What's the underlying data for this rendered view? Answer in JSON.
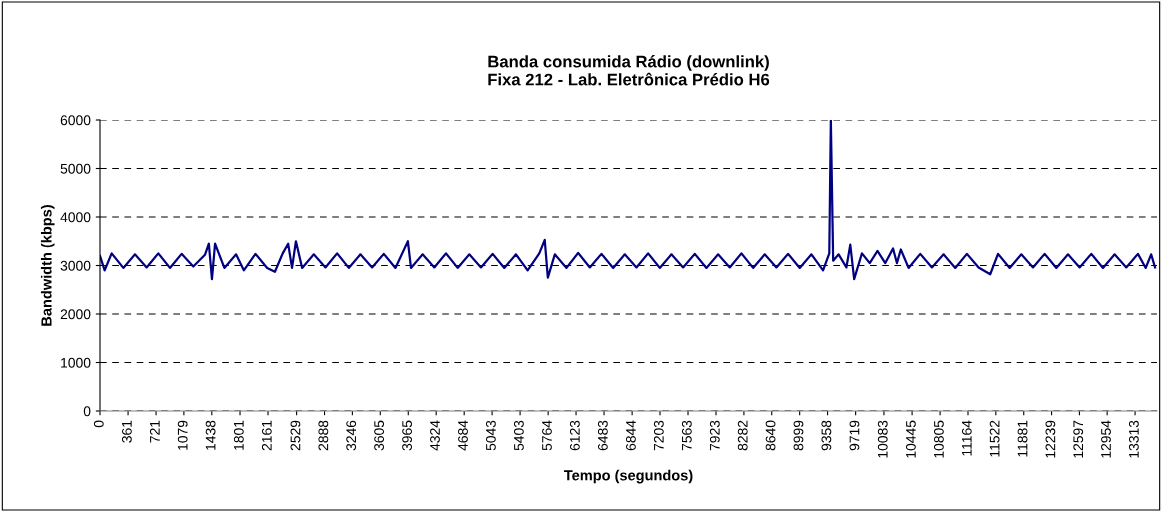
{
  "chart_data": {
    "type": "line",
    "title": "Banda consumida Rádio (downlink)\nFixa 212 - Lab. Eletrônica Prédio H6",
    "xlabel": "Tempo (segundos)",
    "ylabel": "Bandwidth (kbps)",
    "series": [
      {
        "color": "#000080",
        "x": [
          0,
          60,
          150,
          300,
          450,
          600,
          750,
          900,
          1050,
          1200,
          1350,
          1400,
          1440,
          1480,
          1600,
          1750,
          1850,
          2000,
          2150,
          2250,
          2350,
          2420,
          2470,
          2520,
          2600,
          2750,
          2900,
          3050,
          3200,
          3350,
          3500,
          3650,
          3800,
          3960,
          4000,
          4150,
          4300,
          4450,
          4600,
          4750,
          4900,
          5050,
          5200,
          5350,
          5500,
          5650,
          5720,
          5760,
          5850,
          6000,
          6150,
          6300,
          6450,
          6600,
          6750,
          6900,
          7050,
          7200,
          7350,
          7500,
          7650,
          7800,
          7950,
          8100,
          8250,
          8400,
          8550,
          8700,
          8850,
          9000,
          9150,
          9300,
          9380,
          9400,
          9430,
          9500,
          9600,
          9650,
          9700,
          9800,
          9900,
          10000,
          10100,
          10200,
          10250,
          10300,
          10400,
          10550,
          10700,
          10850,
          11000,
          11150,
          11300,
          11450,
          11550,
          11700,
          11850,
          12000,
          12150,
          12300,
          12450,
          12600,
          12750,
          12900,
          13050,
          13200,
          13350,
          13450,
          13520,
          13570
        ],
        "values": [
          3200,
          2900,
          3250,
          2950,
          3230,
          2960,
          3250,
          2950,
          3240,
          2980,
          3220,
          3450,
          2720,
          3450,
          2950,
          3230,
          2900,
          3240,
          2950,
          2870,
          3250,
          3450,
          2950,
          3500,
          2950,
          3230,
          2960,
          3250,
          2950,
          3230,
          2960,
          3240,
          2950,
          3500,
          2950,
          3230,
          2960,
          3250,
          2950,
          3230,
          2960,
          3240,
          2950,
          3230,
          2900,
          3250,
          3530,
          2750,
          3230,
          2950,
          3260,
          2960,
          3240,
          2950,
          3230,
          2960,
          3250,
          2950,
          3230,
          2960,
          3240,
          2950,
          3230,
          2960,
          3250,
          2950,
          3230,
          2960,
          3240,
          2950,
          3230,
          2900,
          3250,
          6000,
          3100,
          3230,
          2960,
          3430,
          2720,
          3250,
          3050,
          3300,
          3050,
          3350,
          3050,
          3330,
          2950,
          3240,
          2960,
          3230,
          2950,
          3240,
          2960,
          2820,
          3240,
          2950,
          3230,
          2960,
          3240,
          2950,
          3230,
          2960,
          3240,
          2950,
          3230,
          2960,
          3240,
          2950,
          3230,
          2960
        ]
      }
    ],
    "xlim": [
      0,
      13595
    ],
    "xticks": [
      0,
      361,
      721,
      1079,
      1438,
      1801,
      2161,
      2529,
      2888,
      3246,
      3605,
      3965,
      4324,
      4684,
      5043,
      5403,
      5764,
      6123,
      6483,
      6844,
      7203,
      7563,
      7923,
      8282,
      8640,
      8999,
      9358,
      9719,
      10083,
      10445,
      10805,
      11164,
      11522,
      11881,
      12239,
      12597,
      12954,
      13313
    ],
    "ylim": [
      0,
      6000
    ],
    "yticks": [
      0,
      1000,
      2000,
      3000,
      4000,
      5000,
      6000
    ],
    "grid": "y",
    "line_style": "solid",
    "marker": "none"
  }
}
